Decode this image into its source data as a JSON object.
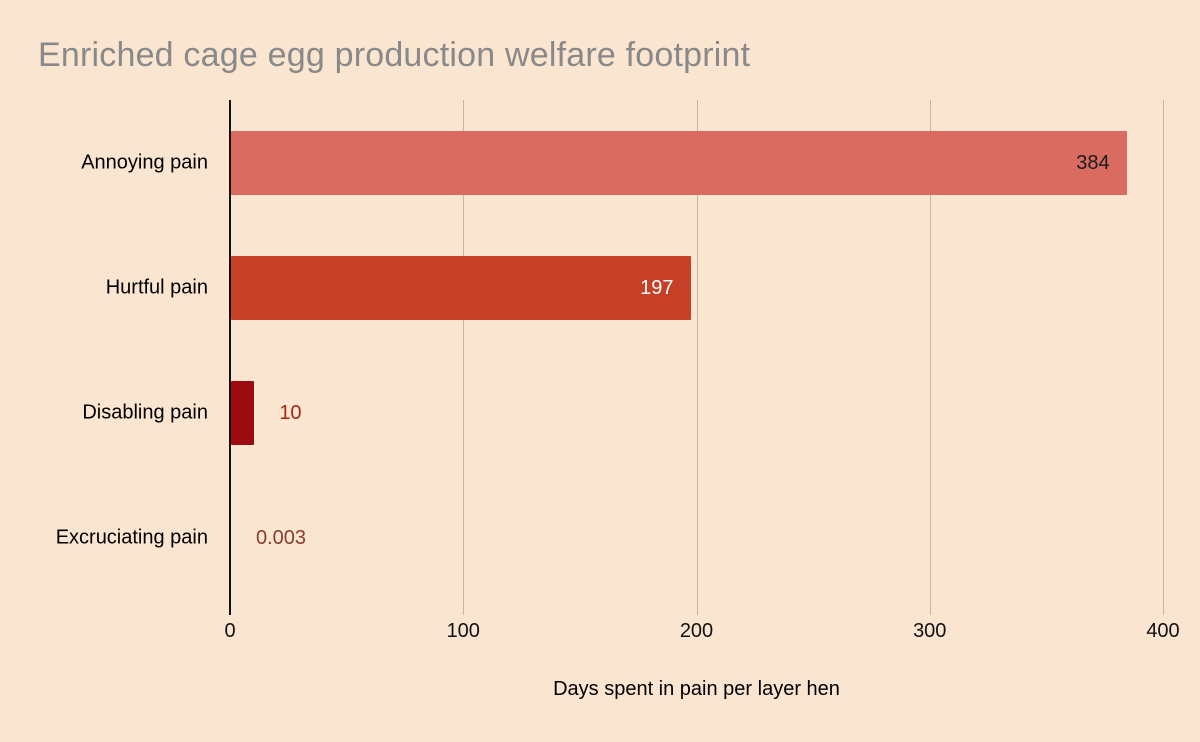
{
  "page": {
    "background": "#FAE5D0"
  },
  "chart_data": {
    "type": "bar",
    "orientation": "horizontal",
    "title": "Enriched cage egg production welfare footprint",
    "xlabel": "Days spent in pain per layer hen",
    "categories": [
      "Annoying pain",
      "Hurtful pain",
      "Disabling pain",
      "Excruciating pain"
    ],
    "values": [
      384,
      197,
      10,
      0.003
    ],
    "value_labels": [
      "384",
      "197",
      "10",
      "0.003"
    ],
    "xlim": [
      0,
      400
    ],
    "xticks": [
      0,
      100,
      200,
      300,
      400
    ],
    "grid": true,
    "legend": "none",
    "bar_colors": [
      "#D96B60",
      "#C54026",
      "#9B0B10",
      "#9B0B10"
    ],
    "value_label_colors": [
      "#1C1C1C",
      "#FFFFFF",
      "#A5281B",
      "#8E3B2B"
    ],
    "value_label_placement": [
      "inside",
      "inside",
      "outside",
      "outside"
    ],
    "title_color": "#898989",
    "gridline_color": "#BDB8B1",
    "axis_color": "#111111"
  }
}
